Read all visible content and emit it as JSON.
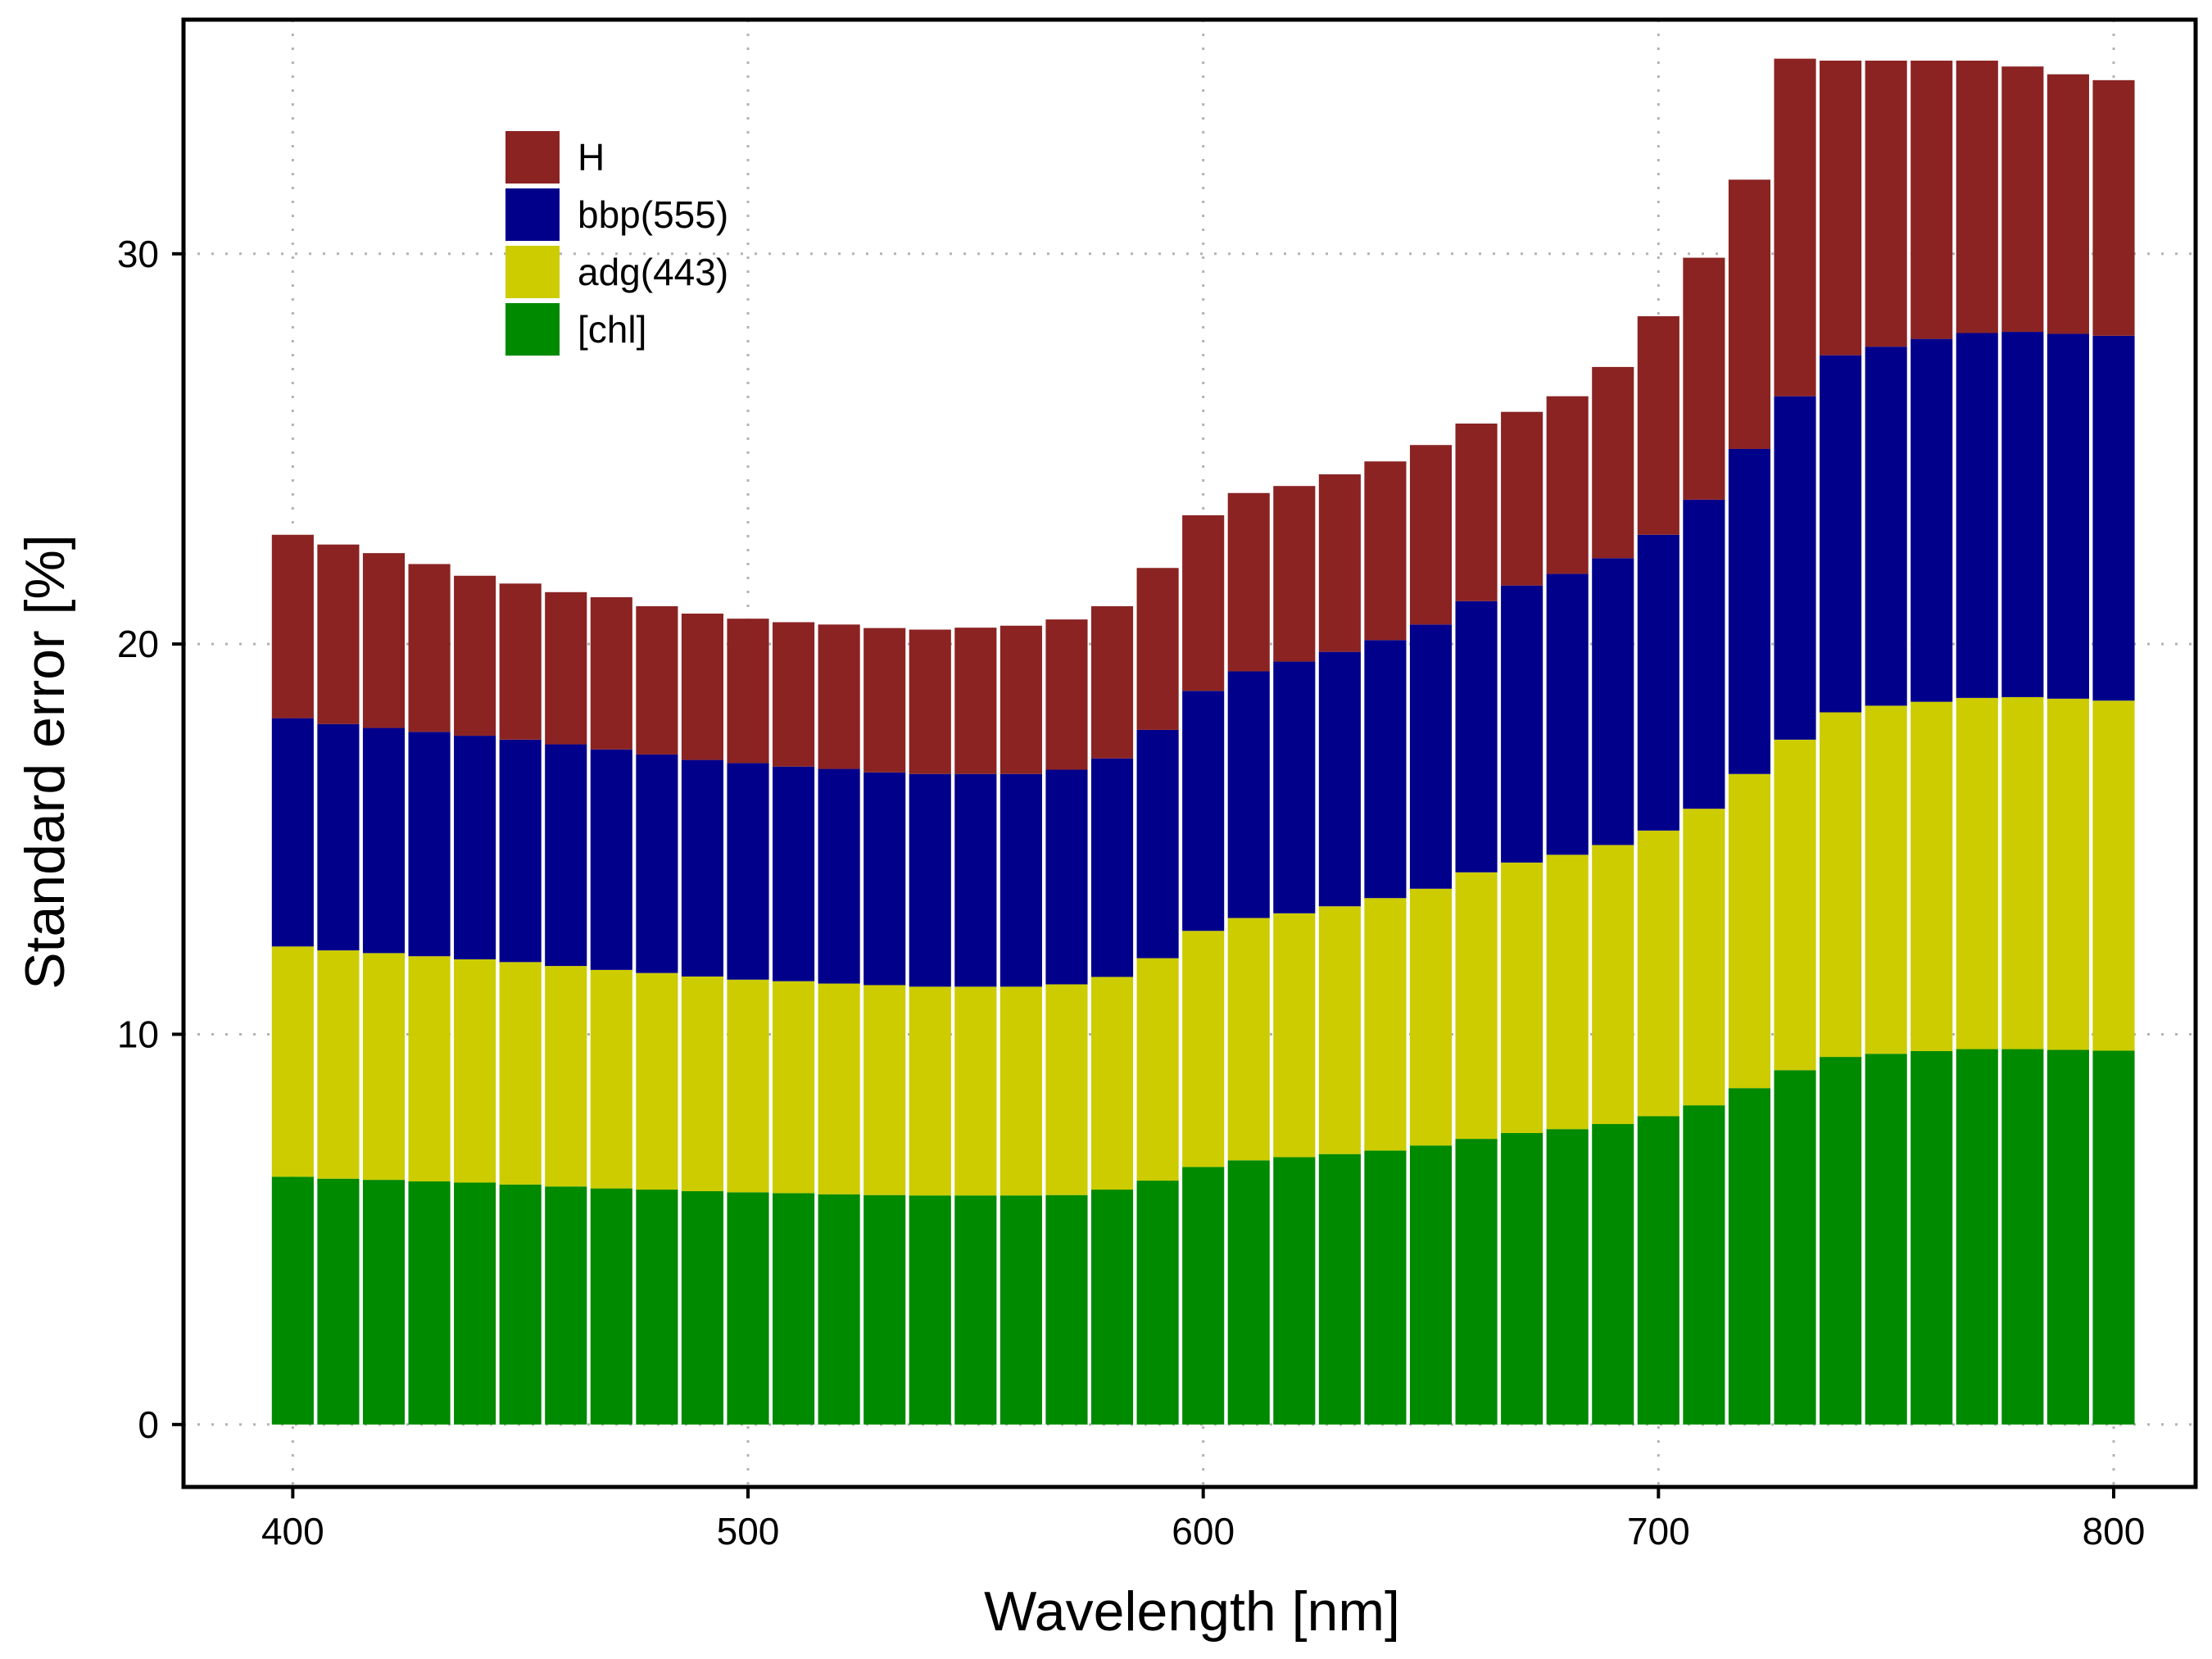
{
  "chart_data": {
    "type": "bar",
    "stacked": true,
    "xlabel": "Wavelength [nm]",
    "ylabel": "Standard error [%]",
    "xlim": [
      376,
      818
    ],
    "ylim": [
      -1.6,
      36.0
    ],
    "xticks": [
      400,
      500,
      600,
      700,
      800
    ],
    "yticks": [
      0,
      10,
      20,
      30
    ],
    "grid": true,
    "legend_position": "top-left",
    "bar_width_nm": 9.2,
    "x": [
      400,
      410,
      420,
      430,
      440,
      450,
      460,
      470,
      480,
      490,
      500,
      510,
      520,
      530,
      540,
      550,
      560,
      570,
      580,
      590,
      600,
      610,
      620,
      630,
      640,
      650,
      660,
      670,
      680,
      690,
      700,
      710,
      720,
      730,
      740,
      750,
      760,
      770,
      780,
      790,
      800
    ],
    "series": [
      {
        "name": "[chl]",
        "color": "#008a00",
        "values": [
          6.35,
          6.3,
          6.27,
          6.23,
          6.2,
          6.15,
          6.1,
          6.05,
          6.02,
          5.98,
          5.95,
          5.93,
          5.9,
          5.88,
          5.87,
          5.87,
          5.87,
          5.88,
          6.02,
          6.25,
          6.6,
          6.77,
          6.85,
          6.93,
          7.02,
          7.15,
          7.32,
          7.47,
          7.57,
          7.7,
          7.9,
          8.18,
          8.62,
          9.08,
          9.42,
          9.5,
          9.57,
          9.62,
          9.62,
          9.6,
          9.58
        ]
      },
      {
        "name": "adg(443)",
        "color": "#cccc00",
        "values": [
          5.9,
          5.85,
          5.81,
          5.77,
          5.72,
          5.7,
          5.65,
          5.6,
          5.55,
          5.5,
          5.45,
          5.43,
          5.4,
          5.38,
          5.35,
          5.35,
          5.35,
          5.4,
          5.45,
          5.7,
          6.05,
          6.21,
          6.25,
          6.35,
          6.47,
          6.58,
          6.83,
          6.93,
          7.03,
          7.15,
          7.32,
          7.6,
          8.05,
          8.47,
          8.83,
          8.92,
          8.95,
          9.0,
          9.02,
          9.0,
          8.97
        ]
      },
      {
        "name": "bbp(555)",
        "color": "#00008b",
        "values": [
          5.85,
          5.8,
          5.77,
          5.75,
          5.73,
          5.7,
          5.68,
          5.65,
          5.6,
          5.55,
          5.55,
          5.5,
          5.5,
          5.45,
          5.45,
          5.45,
          5.45,
          5.5,
          5.6,
          5.85,
          6.15,
          6.32,
          6.45,
          6.52,
          6.61,
          6.77,
          6.95,
          7.1,
          7.2,
          7.35,
          7.58,
          7.92,
          8.33,
          8.8,
          9.15,
          9.2,
          9.3,
          9.35,
          9.36,
          9.35,
          9.35
        ]
      },
      {
        "name": "H",
        "color": "#8b2323",
        "values": [
          4.7,
          4.6,
          4.48,
          4.3,
          4.1,
          4.0,
          3.9,
          3.9,
          3.8,
          3.75,
          3.7,
          3.7,
          3.7,
          3.7,
          3.7,
          3.75,
          3.8,
          3.85,
          3.9,
          4.15,
          4.5,
          4.57,
          4.5,
          4.55,
          4.58,
          4.6,
          4.55,
          4.45,
          4.55,
          4.9,
          5.6,
          6.2,
          6.9,
          8.65,
          7.55,
          7.33,
          7.13,
          6.98,
          6.8,
          6.65,
          6.55
        ]
      }
    ]
  }
}
